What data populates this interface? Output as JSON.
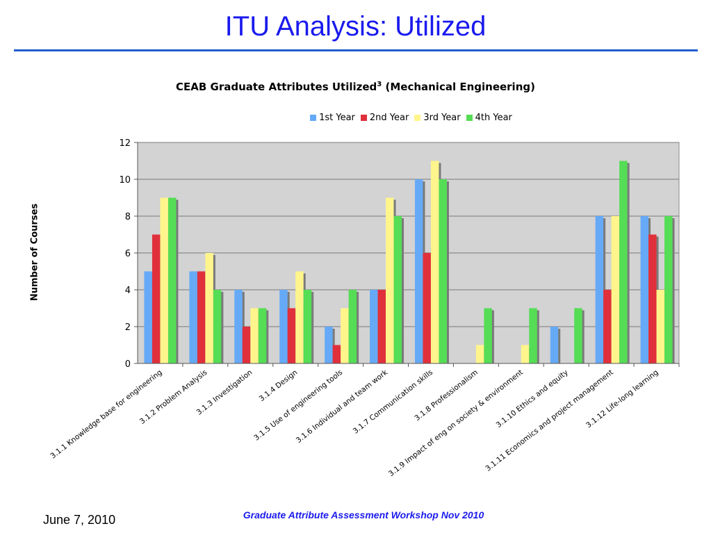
{
  "slide": {
    "title": "ITU Analysis: Utilized",
    "footer_date": "June 7, 2010",
    "footer_center": "Graduate Attribute Assessment Workshop Nov 2010"
  },
  "chart_data": {
    "type": "bar",
    "title": "CEAB Graduate Attributes Utilized",
    "title_superscript": "3",
    "title_suffix": "(Mechanical Engineering)",
    "ylabel": "Number of Courses",
    "xlabel": "",
    "ylim": [
      0,
      12
    ],
    "yticks": [
      0,
      2,
      4,
      6,
      8,
      10,
      12
    ],
    "grid": true,
    "legend_position": "top",
    "plot_background": "#d3d3d3",
    "categories": [
      "3.1.1 Knowledge base for engineering",
      "3.1.2 Problem Analysis",
      "3.1.3 Investigation",
      "3.1.4 Design",
      "3.1.5 Use of engineering tools",
      "3.1.6 Individual and team work",
      "3.1.7 Communication skills",
      "3.1.8 Professionalism",
      "3.1.9 Impact of eng on society & environment",
      "3.1.10 Ethics and equity",
      "3.1.11 Economics and project management",
      "3.1.12 Life-long learning"
    ],
    "series": [
      {
        "name": "1st Year",
        "color": "#66aaf7",
        "values": [
          5,
          5,
          4,
          4,
          2,
          4,
          10,
          0,
          0,
          2,
          8,
          8
        ]
      },
      {
        "name": "2nd Year",
        "color": "#e0303c",
        "values": [
          7,
          5,
          2,
          3,
          1,
          4,
          6,
          0,
          0,
          0,
          4,
          7
        ]
      },
      {
        "name": "3rd Year",
        "color": "#fff58c",
        "values": [
          9,
          6,
          3,
          5,
          3,
          9,
          11,
          1,
          1,
          0,
          8,
          4
        ]
      },
      {
        "name": "4th Year",
        "color": "#55dd55",
        "values": [
          9,
          4,
          3,
          4,
          4,
          8,
          10,
          3,
          3,
          3,
          11,
          8
        ]
      }
    ]
  }
}
